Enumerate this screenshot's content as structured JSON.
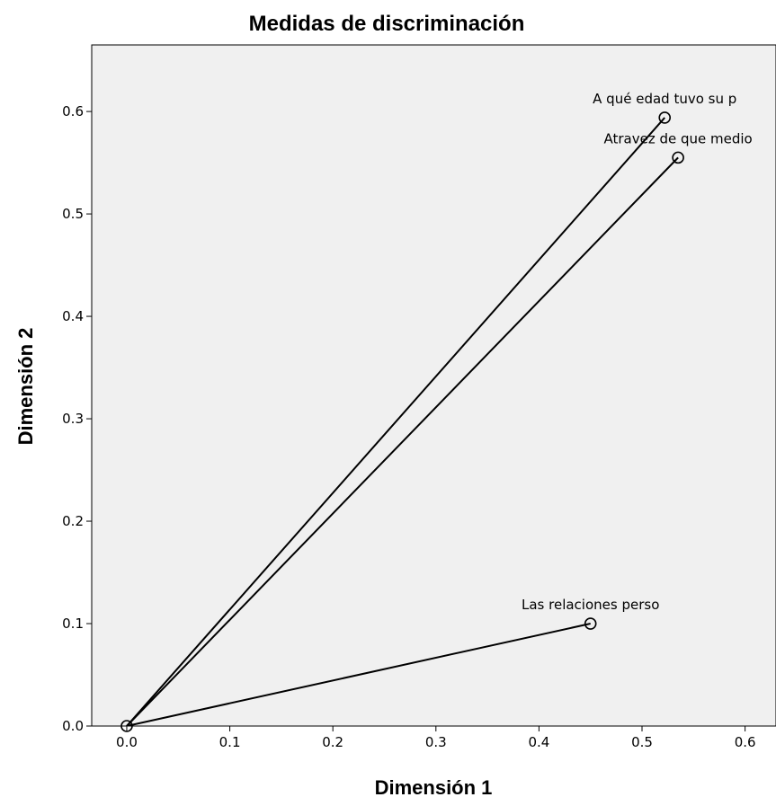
{
  "chart_data": {
    "type": "scatter",
    "title": "Medidas de discriminación",
    "xlabel": "Dimensión 1",
    "ylabel": "Dimensión 2",
    "xlim": [
      -0.034,
      0.63
    ],
    "ylim": [
      0.0,
      0.665
    ],
    "xticks": [
      "0.0",
      "0.1",
      "0.2",
      "0.3",
      "0.4",
      "0.5",
      "0.6"
    ],
    "yticks": [
      "0.0",
      "0.1",
      "0.2",
      "0.3",
      "0.4",
      "0.5",
      "0.6"
    ],
    "grid": false,
    "vectors_from_origin": true,
    "origin": {
      "x": 0.0,
      "y": 0.0
    },
    "points": [
      {
        "label": "A qué edad tuvo su p",
        "x": 0.522,
        "y": 0.594
      },
      {
        "label": "Atravez de que medio",
        "x": 0.535,
        "y": 0.555
      },
      {
        "label": "Las relaciones perso",
        "x": 0.45,
        "y": 0.1
      }
    ],
    "colors": {
      "plot_background": "#f0f0f0",
      "line": "#000000"
    }
  }
}
